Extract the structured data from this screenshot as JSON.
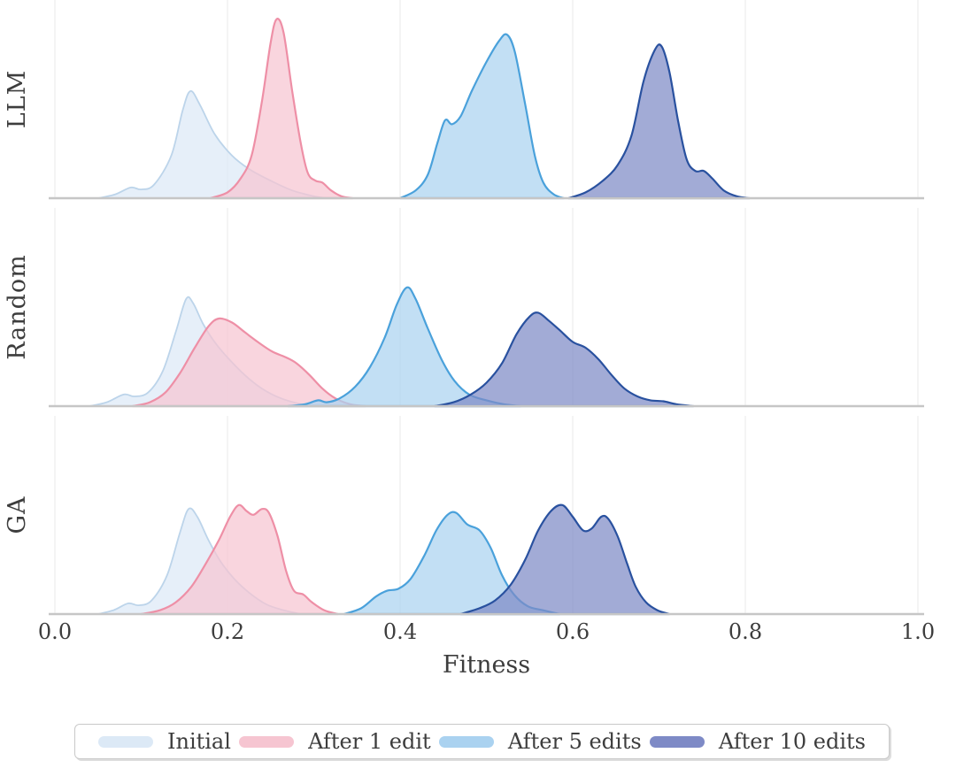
{
  "chart_data": {
    "type": "area",
    "subtype": "kde-ridgeline",
    "title": "",
    "xlabel": "Fitness",
    "ylabel": "",
    "xlim": [
      0.0,
      1.0
    ],
    "grid": true,
    "legend_position": "bottom",
    "points_format": "[fitness_value, relative_density_height 0..1]",
    "x_ticks": [
      {
        "label": "0.0",
        "value": 0.0
      },
      {
        "label": "0.2",
        "value": 0.2
      },
      {
        "label": "0.4",
        "value": 0.4
      },
      {
        "label": "0.6",
        "value": 0.6
      },
      {
        "label": "0.8",
        "value": 0.8
      },
      {
        "label": "1.0",
        "value": 1.0
      }
    ],
    "series_names": [
      "Initial",
      "After 1 edit",
      "After 5 edits",
      "After 10 edits"
    ],
    "colors": {
      "Initial": {
        "fill": "#dce9f6",
        "stroke": "#bcd4ea"
      },
      "After 1 edit": {
        "fill": "#f6c5d1",
        "stroke": "#ee8fa6"
      },
      "After 5 edits": {
        "fill": "#aad2f0",
        "stroke": "#4aa1db"
      },
      "After 10 edits": {
        "fill": "#7e8ac6",
        "stroke": "#29519f"
      }
    },
    "fill_opacity": 0.72,
    "rows": [
      {
        "label": "LLM",
        "series": [
          {
            "name": "Initial",
            "peak_fitness": 0.155,
            "points": [
              [
                0.05,
                0
              ],
              [
                0.07,
                0.02
              ],
              [
                0.088,
                0.055
              ],
              [
                0.1,
                0.045
              ],
              [
                0.115,
                0.07
              ],
              [
                0.135,
                0.22
              ],
              [
                0.148,
                0.45
              ],
              [
                0.157,
                0.55
              ],
              [
                0.168,
                0.48
              ],
              [
                0.185,
                0.33
              ],
              [
                0.205,
                0.22
              ],
              [
                0.225,
                0.15
              ],
              [
                0.25,
                0.09
              ],
              [
                0.275,
                0.04
              ],
              [
                0.3,
                0.01
              ],
              [
                0.315,
                0
              ]
            ]
          },
          {
            "name": "After 1 edit",
            "peak_fitness": 0.255,
            "points": [
              [
                0.18,
                0
              ],
              [
                0.2,
                0.03
              ],
              [
                0.215,
                0.1
              ],
              [
                0.228,
                0.22
              ],
              [
                0.24,
                0.5
              ],
              [
                0.25,
                0.8
              ],
              [
                0.257,
                0.92
              ],
              [
                0.265,
                0.85
              ],
              [
                0.275,
                0.55
              ],
              [
                0.285,
                0.28
              ],
              [
                0.293,
                0.13
              ],
              [
                0.302,
                0.09
              ],
              [
                0.31,
                0.08
              ],
              [
                0.32,
                0.04
              ],
              [
                0.332,
                0.01
              ],
              [
                0.345,
                0
              ]
            ]
          },
          {
            "name": "After 5 edits",
            "peak_fitness": 0.525,
            "points": [
              [
                0.4,
                0
              ],
              [
                0.418,
                0.04
              ],
              [
                0.432,
                0.12
              ],
              [
                0.443,
                0.28
              ],
              [
                0.452,
                0.4
              ],
              [
                0.46,
                0.38
              ],
              [
                0.47,
                0.42
              ],
              [
                0.483,
                0.55
              ],
              [
                0.5,
                0.7
              ],
              [
                0.515,
                0.81
              ],
              [
                0.524,
                0.84
              ],
              [
                0.533,
                0.75
              ],
              [
                0.545,
                0.48
              ],
              [
                0.556,
                0.22
              ],
              [
                0.566,
                0.08
              ],
              [
                0.578,
                0.02
              ],
              [
                0.59,
                0
              ]
            ]
          },
          {
            "name": "After 10 edits",
            "peak_fitness": 0.7,
            "points": [
              [
                0.595,
                0
              ],
              [
                0.615,
                0.03
              ],
              [
                0.635,
                0.09
              ],
              [
                0.652,
                0.17
              ],
              [
                0.668,
                0.32
              ],
              [
                0.682,
                0.6
              ],
              [
                0.695,
                0.76
              ],
              [
                0.703,
                0.78
              ],
              [
                0.712,
                0.65
              ],
              [
                0.722,
                0.4
              ],
              [
                0.732,
                0.2
              ],
              [
                0.742,
                0.14
              ],
              [
                0.752,
                0.14
              ],
              [
                0.762,
                0.1
              ],
              [
                0.775,
                0.04
              ],
              [
                0.79,
                0.01
              ],
              [
                0.805,
                0
              ]
            ]
          }
        ]
      },
      {
        "label": "Random",
        "series": [
          {
            "name": "Initial",
            "peak_fitness": 0.152,
            "points": [
              [
                0.04,
                0
              ],
              [
                0.06,
                0.02
              ],
              [
                0.08,
                0.06
              ],
              [
                0.092,
                0.05
              ],
              [
                0.108,
                0.07
              ],
              [
                0.125,
                0.18
              ],
              [
                0.14,
                0.38
              ],
              [
                0.152,
                0.55
              ],
              [
                0.16,
                0.53
              ],
              [
                0.172,
                0.42
              ],
              [
                0.185,
                0.33
              ],
              [
                0.2,
                0.25
              ],
              [
                0.22,
                0.16
              ],
              [
                0.24,
                0.09
              ],
              [
                0.262,
                0.04
              ],
              [
                0.285,
                0.01
              ],
              [
                0.3,
                0
              ]
            ]
          },
          {
            "name": "After 1 edit",
            "peak_fitness": 0.19,
            "points": [
              [
                0.09,
                0
              ],
              [
                0.11,
                0.02
              ],
              [
                0.128,
                0.07
              ],
              [
                0.145,
                0.17
              ],
              [
                0.162,
                0.3
              ],
              [
                0.178,
                0.41
              ],
              [
                0.19,
                0.45
              ],
              [
                0.205,
                0.43
              ],
              [
                0.22,
                0.38
              ],
              [
                0.235,
                0.33
              ],
              [
                0.252,
                0.28
              ],
              [
                0.268,
                0.25
              ],
              [
                0.28,
                0.22
              ],
              [
                0.295,
                0.16
              ],
              [
                0.31,
                0.09
              ],
              [
                0.325,
                0.04
              ],
              [
                0.342,
                0.01
              ],
              [
                0.36,
                0
              ]
            ]
          },
          {
            "name": "After 5 edits",
            "peak_fitness": 0.41,
            "points": [
              [
                0.27,
                0
              ],
              [
                0.29,
                0.01
              ],
              [
                0.305,
                0.03
              ],
              [
                0.315,
                0.02
              ],
              [
                0.33,
                0.04
              ],
              [
                0.348,
                0.1
              ],
              [
                0.365,
                0.2
              ],
              [
                0.382,
                0.35
              ],
              [
                0.396,
                0.52
              ],
              [
                0.408,
                0.61
              ],
              [
                0.418,
                0.55
              ],
              [
                0.432,
                0.4
              ],
              [
                0.448,
                0.24
              ],
              [
                0.463,
                0.13
              ],
              [
                0.48,
                0.06
              ],
              [
                0.5,
                0.03
              ],
              [
                0.52,
                0.01
              ],
              [
                0.54,
                0
              ]
            ]
          },
          {
            "name": "After 10 edits",
            "peak_fitness": 0.557,
            "points": [
              [
                0.44,
                0
              ],
              [
                0.462,
                0.02
              ],
              [
                0.482,
                0.06
              ],
              [
                0.5,
                0.12
              ],
              [
                0.518,
                0.22
              ],
              [
                0.535,
                0.37
              ],
              [
                0.55,
                0.46
              ],
              [
                0.56,
                0.48
              ],
              [
                0.572,
                0.44
              ],
              [
                0.585,
                0.39
              ],
              [
                0.6,
                0.33
              ],
              [
                0.615,
                0.3
              ],
              [
                0.63,
                0.24
              ],
              [
                0.645,
                0.16
              ],
              [
                0.66,
                0.09
              ],
              [
                0.675,
                0.05
              ],
              [
                0.69,
                0.03
              ],
              [
                0.705,
                0.025
              ],
              [
                0.72,
                0.01
              ],
              [
                0.74,
                0
              ]
            ]
          }
        ]
      },
      {
        "label": "GA",
        "series": [
          {
            "name": "Initial",
            "peak_fitness": 0.155,
            "points": [
              [
                0.05,
                0
              ],
              [
                0.068,
                0.02
              ],
              [
                0.085,
                0.055
              ],
              [
                0.097,
                0.045
              ],
              [
                0.112,
                0.07
              ],
              [
                0.13,
                0.2
              ],
              [
                0.145,
                0.42
              ],
              [
                0.155,
                0.54
              ],
              [
                0.165,
                0.5
              ],
              [
                0.178,
                0.38
              ],
              [
                0.192,
                0.27
              ],
              [
                0.208,
                0.18
              ],
              [
                0.225,
                0.11
              ],
              [
                0.245,
                0.05
              ],
              [
                0.265,
                0.02
              ],
              [
                0.285,
                0
              ]
            ]
          },
          {
            "name": "After 1 edit",
            "peak_fitness": 0.215,
            "points": [
              [
                0.1,
                0
              ],
              [
                0.122,
                0.02
              ],
              [
                0.14,
                0.06
              ],
              [
                0.158,
                0.14
              ],
              [
                0.175,
                0.26
              ],
              [
                0.19,
                0.38
              ],
              [
                0.203,
                0.5
              ],
              [
                0.213,
                0.56
              ],
              [
                0.222,
                0.53
              ],
              [
                0.23,
                0.51
              ],
              [
                0.24,
                0.54
              ],
              [
                0.248,
                0.52
              ],
              [
                0.258,
                0.4
              ],
              [
                0.268,
                0.22
              ],
              [
                0.277,
                0.12
              ],
              [
                0.288,
                0.1
              ],
              [
                0.298,
                0.06
              ],
              [
                0.312,
                0.02
              ],
              [
                0.328,
                0
              ]
            ]
          },
          {
            "name": "After 5 edits",
            "peak_fitness": 0.462,
            "points": [
              [
                0.335,
                0
              ],
              [
                0.355,
                0.03
              ],
              [
                0.372,
                0.09
              ],
              [
                0.385,
                0.12
              ],
              [
                0.398,
                0.13
              ],
              [
                0.412,
                0.18
              ],
              [
                0.428,
                0.3
              ],
              [
                0.442,
                0.43
              ],
              [
                0.455,
                0.51
              ],
              [
                0.465,
                0.52
              ],
              [
                0.478,
                0.46
              ],
              [
                0.492,
                0.43
              ],
              [
                0.505,
                0.34
              ],
              [
                0.518,
                0.2
              ],
              [
                0.532,
                0.1
              ],
              [
                0.548,
                0.04
              ],
              [
                0.565,
                0.02
              ],
              [
                0.585,
                0
              ]
            ]
          },
          {
            "name": "After 10 edits",
            "peak_fitness": 0.59,
            "points": [
              [
                0.47,
                0
              ],
              [
                0.492,
                0.03
              ],
              [
                0.51,
                0.07
              ],
              [
                0.528,
                0.15
              ],
              [
                0.545,
                0.28
              ],
              [
                0.56,
                0.43
              ],
              [
                0.575,
                0.53
              ],
              [
                0.588,
                0.56
              ],
              [
                0.6,
                0.5
              ],
              [
                0.612,
                0.43
              ],
              [
                0.622,
                0.44
              ],
              [
                0.633,
                0.5
              ],
              [
                0.641,
                0.49
              ],
              [
                0.652,
                0.4
              ],
              [
                0.663,
                0.26
              ],
              [
                0.673,
                0.14
              ],
              [
                0.685,
                0.06
              ],
              [
                0.698,
                0.02
              ],
              [
                0.712,
                0
              ]
            ]
          }
        ]
      }
    ]
  },
  "legend": {
    "entries": [
      {
        "label": "Initial",
        "swatch_color": "#dce9f6"
      },
      {
        "label": "After 1 edit",
        "swatch_color": "#f6c5d1"
      },
      {
        "label": "After 5 edits",
        "swatch_color": "#aad2f0"
      },
      {
        "label": "After 10 edits",
        "swatch_color": "#7e8ac6"
      }
    ]
  },
  "style": {
    "gridline_color": "#ededed",
    "baseline_color": "#c6c6c6",
    "text_color": "#3d3d3d",
    "background": "#ffffff"
  }
}
